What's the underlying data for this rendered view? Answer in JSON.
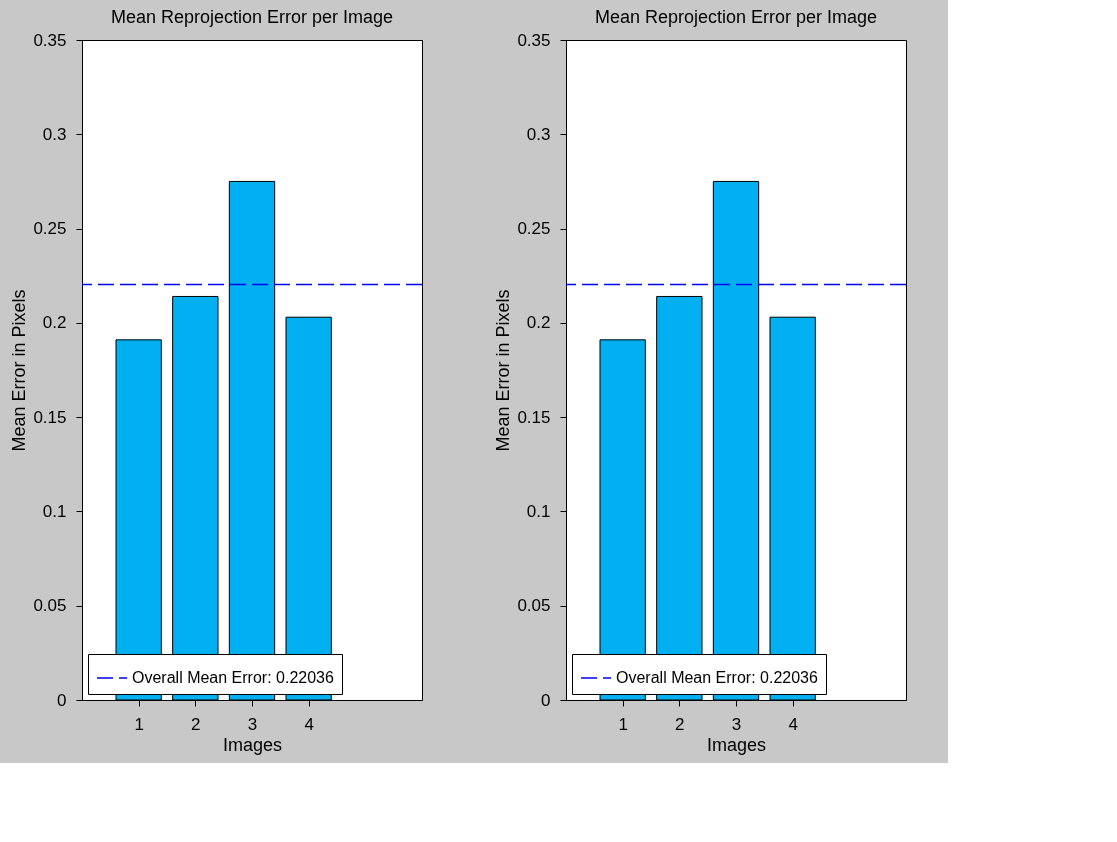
{
  "chart_data": [
    {
      "type": "bar",
      "title": "Mean Reprojection Error per Image",
      "xlabel": "Images",
      "ylabel": "Mean Error in Pixels",
      "x": [
        1,
        2,
        3,
        4
      ],
      "xlim": [
        0,
        6
      ],
      "xticks": [
        1,
        2,
        3,
        4
      ],
      "ylim": [
        0,
        0.35
      ],
      "yticks": [
        0,
        0.05,
        0.1,
        0.15,
        0.2,
        0.25,
        0.3,
        0.35
      ],
      "series": [
        {
          "color": "#00b0f0",
          "values": [
            0.191,
            0.214,
            0.275,
            0.203
          ]
        }
      ],
      "ref_lines": [
        {
          "axis": "y",
          "value": 0.22036,
          "label": "Overall Mean Error: 0.22036",
          "color": "#0000ff",
          "line_style": "dashed"
        }
      ],
      "legend": "bottom left",
      "grid": false
    },
    {
      "type": "bar",
      "title": "Mean Reprojection Error per Image",
      "xlabel": "Images",
      "ylabel": "Mean Error in Pixels",
      "x": [
        1,
        2,
        3,
        4
      ],
      "xlim": [
        0,
        6
      ],
      "xticks": [
        1,
        2,
        3,
        4
      ],
      "ylim": [
        0,
        0.35
      ],
      "yticks": [
        0,
        0.05,
        0.1,
        0.15,
        0.2,
        0.25,
        0.3,
        0.35
      ],
      "series": [
        {
          "color": "#00b0f0",
          "values": [
            0.191,
            0.214,
            0.275,
            0.203
          ]
        }
      ],
      "ref_lines": [
        {
          "axis": "y",
          "value": 0.22036,
          "label": "Overall Mean Error: 0.22036",
          "color": "#0000ff",
          "line_style": "dashed"
        }
      ],
      "legend": "bottom left",
      "grid": false
    }
  ]
}
